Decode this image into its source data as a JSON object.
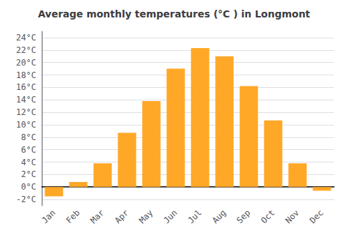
{
  "chart_data": {
    "type": "bar",
    "title": "Average monthly temperatures (°C ) in Longmont",
    "categories": [
      "Jan",
      "Feb",
      "Mar",
      "Apr",
      "May",
      "Jun",
      "Jul",
      "Aug",
      "Sep",
      "Oct",
      "Nov",
      "Dec"
    ],
    "values": [
      -1.5,
      0.8,
      3.8,
      8.7,
      13.8,
      19.0,
      22.3,
      21.0,
      16.2,
      10.7,
      3.8,
      -0.6
    ],
    "color": "#FFA726",
    "ylim": [
      -3,
      25
    ],
    "yticks": [
      {
        "value": -2,
        "label": "-2°C"
      },
      {
        "value": 0,
        "label": "0°C"
      },
      {
        "value": 2,
        "label": "2°C"
      },
      {
        "value": 4,
        "label": "4°C"
      },
      {
        "value": 6,
        "label": "6°C"
      },
      {
        "value": 8,
        "label": "8°C"
      },
      {
        "value": 10,
        "label": "10°C"
      },
      {
        "value": 12,
        "label": "12°C"
      },
      {
        "value": 14,
        "label": "14°C"
      },
      {
        "value": 16,
        "label": "16°C"
      },
      {
        "value": 18,
        "label": "18°C"
      },
      {
        "value": 20,
        "label": "20°C"
      },
      {
        "value": 22,
        "label": "22°C"
      },
      {
        "value": 24,
        "label": "24°C"
      }
    ],
    "grid": true
  }
}
